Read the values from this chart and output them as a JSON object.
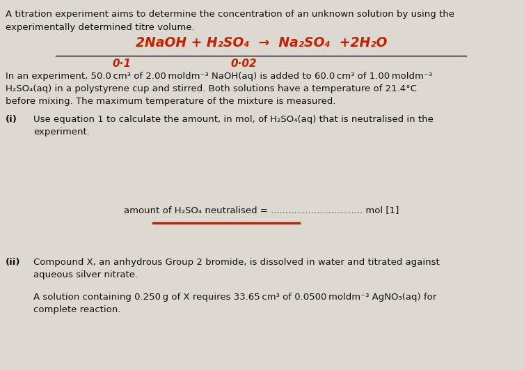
{
  "bg_color": "#ddd9d0",
  "text_color": "#111111",
  "red_color": "#c42000",
  "title_line1": "A titration experiment aims to determine the concentration of an unknown solution by using the",
  "title_line2": "experimentally determined titre volume.",
  "eq_annotation1": "0·1",
  "eq_annotation2": "0·02",
  "body_text1": "In an experiment, 50.0 cm³ of 2.00 moldm⁻³ NaOH(aq) is added to 60.0 cm³ of 1.00 moldm⁻³",
  "body_text2": "H₂SO₄(aq) in a polystyrene cup and stirred. Both solutions have a temperature of 21.4°C",
  "body_text3": "before mixing. The maximum temperature of the mixture is measured.",
  "part_i_label": "(i)",
  "part_i_text1": "Use equation 1 to calculate the amount, in mol, of H₂SO₄(aq) that is neutralised in the",
  "part_i_text2": "experiment.",
  "answer_text": "amount of H₂SO₄ neutralised = ................................ mol [1]",
  "part_ii_label": "(ii)",
  "part_ii_text1": "Compound X, an anhydrous Group 2 bromide, is dissolved in water and titrated against",
  "part_ii_text2": "aqueous silver nitrate.",
  "part_ii_text3": "A solution containing 0.250 g of X requires 33.65 cm³ of 0.0500 moldm⁻³ AgNO₃(aq) for",
  "part_ii_text4": "complete reaction.",
  "fs_main": 9.5,
  "fs_eq": 13.5
}
